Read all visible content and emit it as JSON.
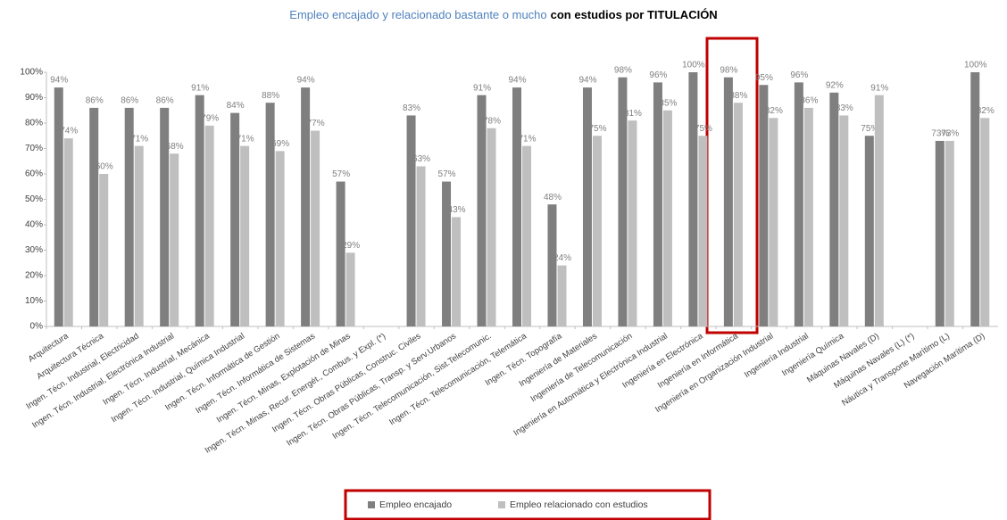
{
  "chart_data": {
    "type": "bar",
    "title_parts": [
      "Empleo encajado y relacionado bastante o mucho",
      "con estudios por TITULACIÓN"
    ],
    "categories": [
      "Arquitectura",
      "Arquitectura Técnica",
      "Ingen. Técn. Industrial, Electricidad",
      "Ingen. Técn. Industrial, Electrónica Industrial",
      "Ingen. Técn. Industrial, Mecánica",
      "Ingen. Técn. Industrial, Química Industrial",
      "Ingen. Técn. Informática de Gestión",
      "Ingen. Técn. Informática de Sistemas",
      "Ingen. Técn. Minas, Explotación de Minas",
      "Ingen. Técn. Minas, Recur. Energét., Combus. y Expl. (*)",
      "Ingen. Técn. Obras Públicas, Construc. Civiles",
      "Ingen. Técn. Obras Públicas, Transp. y Serv.Urbanos",
      "Ingen. Técn. Telecomunicación, Sist.Telecomunic.",
      "Ingen. Técn. Telecomunicación,  Telemática",
      "Ingen. Técn. Topografía",
      "Ingeniería de Materiales",
      "Ingeniería de Telecomunicación",
      "Ingeniería en Automática y Electrónica Industrial",
      "Ingeniería en Electrónica",
      "Ingeniería en Informática",
      "Ingeniería en Organización Industrial",
      "Ingeniería Industrial",
      "Ingeniería Química",
      "Máquinas Navales (D)",
      "Máquinas Navales (L) (*)",
      "Náutica y Transporte Marítimo (L)",
      "Navegación Marítima (D)"
    ],
    "series": [
      {
        "name": "Empleo encajado",
        "color": "#7f7f7f",
        "values": [
          94,
          86,
          86,
          86,
          91,
          84,
          88,
          94,
          57,
          null,
          83,
          57,
          91,
          94,
          48,
          94,
          98,
          96,
          100,
          98,
          95,
          96,
          92,
          75,
          null,
          73,
          100
        ],
        "value_labels": [
          "94%",
          "86%",
          "86%",
          "86%",
          "91%",
          "84%",
          "88%",
          "94%",
          "57%",
          null,
          "83%",
          "57%",
          "91%",
          "94%",
          "48%",
          "94%",
          "98%",
          "96%",
          "100%",
          "98%",
          "95%",
          "96%",
          "92%",
          "75%",
          null,
          "73%",
          "100%"
        ]
      },
      {
        "name": "Empleo relacionado con estudios",
        "color": "#bfbfbf",
        "values": [
          74,
          60,
          71,
          68,
          79,
          71,
          69,
          77,
          29,
          null,
          63,
          43,
          78,
          71,
          24,
          75,
          81,
          85,
          75,
          88,
          82,
          86,
          83,
          91,
          null,
          73,
          82
        ],
        "value_labels": [
          "74%",
          "60%",
          "71%",
          "68%",
          "79%",
          "71%",
          "69%",
          "77%",
          "29%",
          null,
          "63%",
          "43%",
          "78%",
          "71%",
          "24%",
          "75%",
          "81%",
          "85%",
          "75%",
          "88%",
          "82%",
          "86%",
          "83%",
          "91%",
          null,
          "73%",
          "82%"
        ]
      }
    ],
    "ylim": [
      0,
      100
    ],
    "yticks": [
      {
        "value": 0,
        "label": "0%"
      },
      {
        "value": 10,
        "label": "10%"
      },
      {
        "value": 20,
        "label": "20%"
      },
      {
        "value": 30,
        "label": "30%"
      },
      {
        "value": 40,
        "label": "40%"
      },
      {
        "value": 50,
        "label": "50%"
      },
      {
        "value": 60,
        "label": "60%"
      },
      {
        "value": 70,
        "label": "70%"
      },
      {
        "value": 80,
        "label": "80%"
      },
      {
        "value": 90,
        "label": "90%"
      },
      {
        "value": 100,
        "label": "100%"
      }
    ],
    "grid": false
  }
}
